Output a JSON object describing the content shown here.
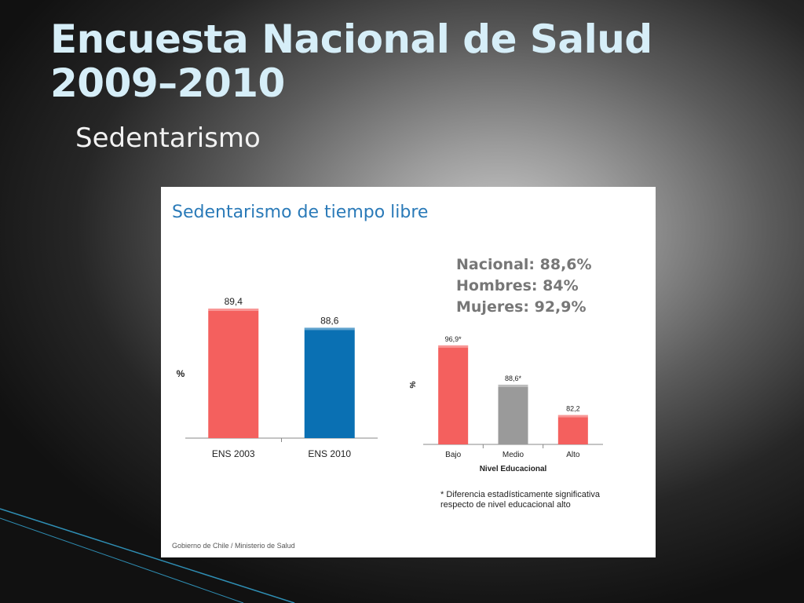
{
  "slide": {
    "title_line1": "Encuesta Nacional de Salud",
    "title_line2": "2009–2010",
    "subtitle": "Sedentarismo"
  },
  "panel": {
    "title": "Sedentarismo de tiempo libre",
    "summary": [
      "Nacional: 88,6%",
      "Hombres: 84%",
      "Mujeres: 92,9%"
    ],
    "footnote_line1": "* Diferencia estadísticamente significativa",
    "footnote_line2": "respecto de  nivel educacional alto",
    "footer": "Gobierno de Chile / Ministerio de Salud"
  },
  "colors": {
    "red": "#f4605e",
    "blue": "#0a70b3",
    "gray": "#9a9a9a",
    "title_blue": "#2a7ab8"
  },
  "chart_data": [
    {
      "type": "bar",
      "categories": [
        "ENS 2003",
        "ENS 2010"
      ],
      "values": [
        89.4,
        88.6
      ],
      "labels": [
        "89,4",
        "88,6"
      ],
      "colors": [
        "#f4605e",
        "#0a70b3"
      ],
      "ylabel": "%",
      "xlabel": "",
      "ylim": [
        84,
        91
      ]
    },
    {
      "type": "bar",
      "categories": [
        "Bajo",
        "Medio",
        "Alto"
      ],
      "values": [
        96.9,
        88.6,
        82.2
      ],
      "labels": [
        "96,9*",
        "88,6*",
        "82,2"
      ],
      "colors": [
        "#f4605e",
        "#9a9a9a",
        "#f4605e"
      ],
      "ylabel": "%",
      "xlabel": "Nivel Educacional",
      "ylim": [
        76,
        101
      ]
    }
  ]
}
